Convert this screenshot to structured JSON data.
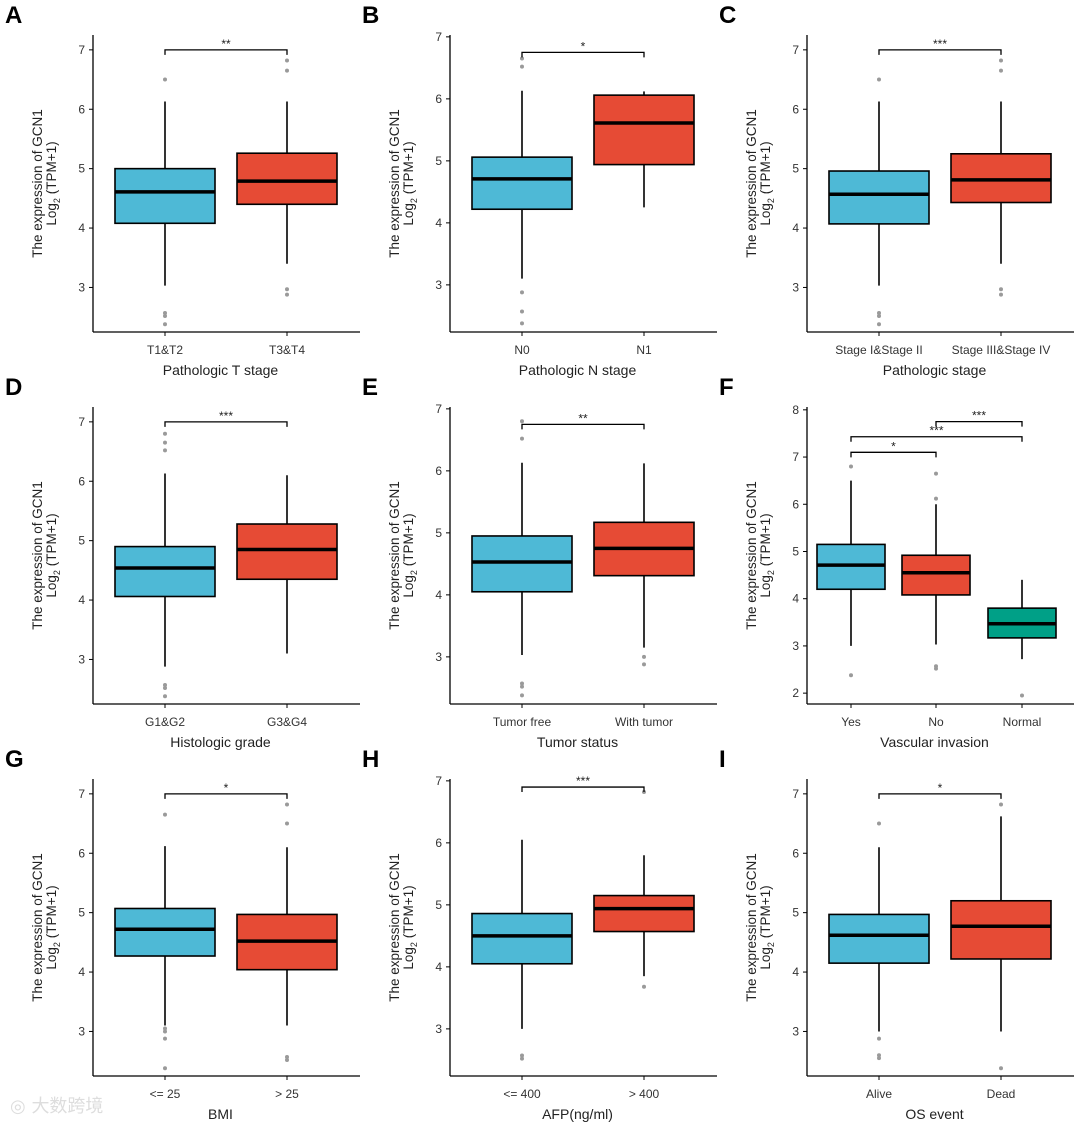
{
  "colors": {
    "blue": "#4EB9D6",
    "red": "#E64B35",
    "teal": "#00A087",
    "outlier": "#9a9a9a"
  },
  "ylabel_line1": "The expression of GCN1",
  "ylabel_log": "Log",
  "ylabel_sub": "2",
  "ylabel_suffix": " (TPM+1)",
  "watermark": "大数跨境",
  "chart_data": [
    {
      "panel": "A",
      "type": "box",
      "xlabel": "Pathologic T stage",
      "ylim": [
        2.25,
        7.25
      ],
      "yticks": [
        3,
        4,
        5,
        6,
        7
      ],
      "groups": [
        {
          "label": "T1&T2",
          "color": "blue",
          "whisker_low": 3.03,
          "q1": 4.08,
          "median": 4.61,
          "q3": 5.0,
          "whisker_high": 6.13,
          "outliers": [
            6.5,
            2.57,
            2.52,
            2.38
          ]
        },
        {
          "label": "T3&T4",
          "color": "red",
          "whisker_low": 3.4,
          "q1": 4.4,
          "median": 4.79,
          "q3": 5.26,
          "whisker_high": 6.13,
          "outliers": [
            6.82,
            6.65,
            2.97,
            2.88
          ]
        }
      ],
      "significance": [
        {
          "from": 0,
          "to": 1,
          "y": 7.0,
          "label": "**"
        }
      ]
    },
    {
      "panel": "B",
      "type": "box",
      "xlabel": "Pathologic N stage",
      "ylim": [
        2.24,
        7.03
      ],
      "yticks": [
        3,
        4,
        5,
        6,
        7
      ],
      "groups": [
        {
          "label": "N0",
          "color": "blue",
          "whisker_low": 3.1,
          "q1": 4.22,
          "median": 4.71,
          "q3": 5.06,
          "whisker_high": 6.13,
          "outliers": [
            6.65,
            6.52,
            2.88,
            2.57,
            2.38
          ]
        },
        {
          "label": "N1",
          "color": "red",
          "whisker_low": 4.25,
          "q1": 4.94,
          "median": 5.61,
          "q3": 6.06,
          "whisker_high": 6.12,
          "outliers": []
        }
      ],
      "significance": [
        {
          "from": 0,
          "to": 1,
          "y": 6.75,
          "label": "*"
        }
      ]
    },
    {
      "panel": "C",
      "type": "box",
      "xlabel": "Pathologic stage",
      "ylim": [
        2.25,
        7.25
      ],
      "yticks": [
        3,
        4,
        5,
        6,
        7
      ],
      "groups": [
        {
          "label": "Stage I&Stage II",
          "color": "blue",
          "whisker_low": 3.03,
          "q1": 4.07,
          "median": 4.57,
          "q3": 4.96,
          "whisker_high": 6.13,
          "outliers": [
            6.5,
            2.57,
            2.52,
            2.38
          ]
        },
        {
          "label": "Stage III&Stage IV",
          "color": "red",
          "whisker_low": 3.4,
          "q1": 4.43,
          "median": 4.81,
          "q3": 5.25,
          "whisker_high": 6.13,
          "outliers": [
            6.82,
            6.65,
            2.97,
            2.88
          ]
        }
      ],
      "significance": [
        {
          "from": 0,
          "to": 1,
          "y": 7.0,
          "label": "***"
        }
      ]
    },
    {
      "panel": "D",
      "type": "box",
      "xlabel": "Histologic grade",
      "ylim": [
        2.25,
        7.25
      ],
      "yticks": [
        3,
        4,
        5,
        6,
        7
      ],
      "groups": [
        {
          "label": "G1&G2",
          "color": "blue",
          "whisker_low": 2.88,
          "q1": 4.06,
          "median": 4.54,
          "q3": 4.9,
          "whisker_high": 6.13,
          "outliers": [
            6.8,
            6.65,
            6.52,
            2.57,
            2.52,
            2.38
          ]
        },
        {
          "label": "G3&G4",
          "color": "red",
          "whisker_low": 3.1,
          "q1": 4.35,
          "median": 4.85,
          "q3": 5.28,
          "whisker_high": 6.1,
          "outliers": []
        }
      ],
      "significance": [
        {
          "from": 0,
          "to": 1,
          "y": 7.0,
          "label": "***"
        }
      ]
    },
    {
      "panel": "E",
      "type": "box",
      "xlabel": "Tumor status",
      "ylim": [
        2.24,
        7.03
      ],
      "yticks": [
        3,
        4,
        5,
        6,
        7
      ],
      "groups": [
        {
          "label": "Tumor free",
          "color": "blue",
          "whisker_low": 3.03,
          "q1": 4.05,
          "median": 4.53,
          "q3": 4.95,
          "whisker_high": 6.13,
          "outliers": [
            6.8,
            6.52,
            2.57,
            2.52,
            2.38
          ]
        },
        {
          "label": "With tumor",
          "color": "red",
          "whisker_low": 3.15,
          "q1": 4.31,
          "median": 4.75,
          "q3": 5.17,
          "whisker_high": 6.12,
          "outliers": [
            3.0,
            2.88
          ]
        }
      ],
      "significance": [
        {
          "from": 0,
          "to": 1,
          "y": 6.75,
          "label": "**"
        }
      ]
    },
    {
      "panel": "F",
      "type": "box",
      "xlabel": "Vascular invasion",
      "ylim": [
        1.77,
        8.06
      ],
      "yticks": [
        2,
        3,
        4,
        5,
        6,
        7,
        8
      ],
      "groups": [
        {
          "label": "Yes",
          "color": "blue",
          "whisker_low": 3.0,
          "q1": 4.2,
          "median": 4.71,
          "q3": 5.15,
          "whisker_high": 6.5,
          "outliers": [
            6.8,
            2.38
          ]
        },
        {
          "label": "No",
          "color": "red",
          "whisker_low": 3.03,
          "q1": 4.08,
          "median": 4.55,
          "q3": 4.92,
          "whisker_high": 6.0,
          "outliers": [
            6.65,
            6.12,
            2.57,
            2.52
          ]
        },
        {
          "label": "Normal",
          "color": "teal",
          "whisker_low": 2.72,
          "q1": 3.17,
          "median": 3.47,
          "q3": 3.8,
          "whisker_high": 4.4,
          "outliers": [
            1.95
          ]
        }
      ],
      "significance": [
        {
          "from": 0,
          "to": 1,
          "y": 7.1,
          "label": "*"
        },
        {
          "from": 0,
          "to": 2,
          "y": 7.43,
          "label": "***"
        },
        {
          "from": 1,
          "to": 2,
          "y": 7.75,
          "label": "***"
        }
      ]
    },
    {
      "panel": "G",
      "type": "box",
      "xlabel": "BMI",
      "ylim": [
        2.25,
        7.25
      ],
      "yticks": [
        3,
        4,
        5,
        6,
        7
      ],
      "groups": [
        {
          "label": "<= 25",
          "color": "blue",
          "whisker_low": 3.1,
          "q1": 4.27,
          "median": 4.72,
          "q3": 5.07,
          "whisker_high": 6.12,
          "outliers": [
            6.65,
            3.05,
            3.0,
            2.88,
            2.38
          ]
        },
        {
          "label": "> 25",
          "color": "red",
          "whisker_low": 3.1,
          "q1": 4.04,
          "median": 4.52,
          "q3": 4.97,
          "whisker_high": 6.1,
          "outliers": [
            6.82,
            6.5,
            2.57,
            2.52
          ]
        }
      ],
      "significance": [
        {
          "from": 0,
          "to": 1,
          "y": 7.0,
          "label": "*"
        }
      ]
    },
    {
      "panel": "H",
      "type": "box",
      "xlabel": "AFP(ng/ml)",
      "ylim": [
        2.24,
        7.03
      ],
      "yticks": [
        3,
        4,
        5,
        6,
        7
      ],
      "groups": [
        {
          "label": "<= 400",
          "color": "blue",
          "whisker_low": 3.0,
          "q1": 4.05,
          "median": 4.5,
          "q3": 4.86,
          "whisker_high": 6.05,
          "outliers": [
            2.57,
            2.52
          ]
        },
        {
          "label": "> 400",
          "color": "red",
          "whisker_low": 3.85,
          "q1": 4.57,
          "median": 4.94,
          "q3": 5.15,
          "whisker_high": 5.8,
          "outliers": [
            6.82,
            3.68
          ]
        }
      ],
      "significance": [
        {
          "from": 0,
          "to": 1,
          "y": 6.9,
          "label": "***"
        }
      ]
    },
    {
      "panel": "I",
      "type": "box",
      "xlabel": "OS event",
      "ylim": [
        2.25,
        7.25
      ],
      "yticks": [
        3,
        4,
        5,
        6,
        7
      ],
      "groups": [
        {
          "label": "Alive",
          "color": "blue",
          "whisker_low": 3.0,
          "q1": 4.15,
          "median": 4.62,
          "q3": 4.97,
          "whisker_high": 6.1,
          "outliers": [
            6.5,
            2.88,
            2.6,
            2.55
          ]
        },
        {
          "label": "Dead",
          "color": "red",
          "whisker_low": 3.0,
          "q1": 4.22,
          "median": 4.77,
          "q3": 5.2,
          "whisker_high": 6.62,
          "outliers": [
            6.82,
            2.38
          ]
        }
      ],
      "significance": [
        {
          "from": 0,
          "to": 1,
          "y": 7.0,
          "label": "*"
        }
      ]
    }
  ]
}
